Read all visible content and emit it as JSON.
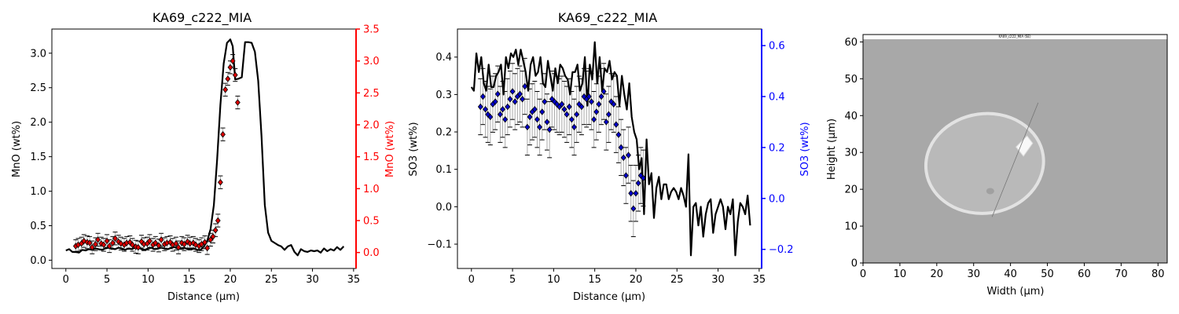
{
  "figure": {
    "background": "#ffffff"
  },
  "chart_data": [
    {
      "type": "line",
      "title": "KA69_c222_MIA",
      "xlabel": "Distance (μm)",
      "ylabel": "MnO (wt%)",
      "y2label": "MnO (wt%)",
      "y2color": "#ff0000",
      "xlim": [
        -1.7,
        35.3
      ],
      "ylim": [
        -0.12,
        3.35
      ],
      "y2lim": [
        -0.25,
        3.5
      ],
      "xticks": [
        0,
        5,
        10,
        15,
        20,
        25,
        30,
        35
      ],
      "yticks": [
        0.0,
        0.5,
        1.0,
        1.5,
        2.0,
        2.5,
        3.0
      ],
      "y2ticks": [
        0.0,
        0.5,
        1.0,
        1.5,
        2.0,
        2.5,
        3.0,
        3.5
      ],
      "series": [
        {
          "color": "#000000",
          "x": [
            0,
            0.4,
            0.8,
            1.2,
            1.6,
            2,
            2.4,
            2.8,
            3.2,
            3.6,
            4,
            4.4,
            4.8,
            5.2,
            5.6,
            6,
            6.4,
            6.8,
            7.2,
            7.6,
            8,
            8.4,
            8.8,
            9.2,
            9.6,
            10,
            10.4,
            10.8,
            11.2,
            11.6,
            12,
            12.4,
            12.8,
            13.2,
            13.6,
            14,
            14.4,
            14.8,
            15.2,
            15.6,
            16,
            16.4,
            16.8,
            17.2,
            17.6,
            18,
            18.4,
            18.8,
            19.2,
            19.6,
            20,
            20.3,
            20.6,
            21,
            21.4,
            21.8,
            22.2,
            22.6,
            23,
            23.4,
            23.8,
            24.2,
            24.6,
            25,
            25.4,
            25.8,
            26.2,
            26.6,
            27,
            27.4,
            27.8,
            28.2,
            28.6,
            29,
            29.4,
            29.8,
            30.2,
            30.6,
            31,
            31.4,
            31.8,
            32.2,
            32.6,
            33,
            33.4,
            33.8
          ],
          "y": [
            0.14,
            0.16,
            0.12,
            0.12,
            0.11,
            0.15,
            0.14,
            0.16,
            0.15,
            0.17,
            0.16,
            0.15,
            0.17,
            0.18,
            0.17,
            0.16,
            0.18,
            0.17,
            0.15,
            0.17,
            0.16,
            0.18,
            0.19,
            0.16,
            0.15,
            0.17,
            0.18,
            0.16,
            0.17,
            0.18,
            0.17,
            0.16,
            0.18,
            0.19,
            0.17,
            0.17,
            0.18,
            0.16,
            0.17,
            0.17,
            0.15,
            0.15,
            0.2,
            0.28,
            0.45,
            0.8,
            1.45,
            2.25,
            2.85,
            3.15,
            3.2,
            3.1,
            2.62,
            2.63,
            2.65,
            3.16,
            3.16,
            3.15,
            3.02,
            2.6,
            1.8,
            0.8,
            0.4,
            0.28,
            0.25,
            0.22,
            0.2,
            0.15,
            0.2,
            0.22,
            0.12,
            0.07,
            0.16,
            0.13,
            0.12,
            0.14,
            0.13,
            0.14,
            0.11,
            0.17,
            0.13,
            0.16,
            0.14,
            0.19,
            0.15,
            0.2
          ]
        }
      ],
      "points": {
        "marker": "diamond",
        "color": "#dd0000",
        "axis": "y2",
        "x": [
          1.2,
          1.5,
          1.9,
          2.2,
          2.6,
          2.9,
          3.2,
          3.6,
          3.9,
          4.3,
          4.6,
          5,
          5.3,
          5.7,
          6,
          6.4,
          6.7,
          7.1,
          7.4,
          7.8,
          8.1,
          8.5,
          8.8,
          9.2,
          9.5,
          9.9,
          10.2,
          10.6,
          10.9,
          11.3,
          11.6,
          12,
          12.3,
          12.7,
          13,
          13.4,
          13.7,
          14.1,
          14.4,
          14.8,
          15.1,
          15.5,
          15.8,
          16.2,
          16.5,
          16.9,
          17.2,
          17.6,
          17.9,
          18.2,
          18.5,
          18.8,
          19.1,
          19.4,
          19.7,
          20,
          20.3,
          20.6,
          20.9
        ],
        "y": [
          0.1,
          0.12,
          0.14,
          0.18,
          0.16,
          0.15,
          0.08,
          0.13,
          0.2,
          0.14,
          0.12,
          0.18,
          0.1,
          0.15,
          0.22,
          0.17,
          0.14,
          0.12,
          0.15,
          0.16,
          0.12,
          0.09,
          0.08,
          0.17,
          0.13,
          0.14,
          0.18,
          0.12,
          0.15,
          0.11,
          0.2,
          0.13,
          0.15,
          0.16,
          0.12,
          0.14,
          0.08,
          0.15,
          0.13,
          0.17,
          0.14,
          0.15,
          0.12,
          0.1,
          0.13,
          0.16,
          0.07,
          0.2,
          0.25,
          0.35,
          0.5,
          1.1,
          1.85,
          2.55,
          2.72,
          2.9,
          3.0,
          2.78,
          2.35
        ],
        "err": 0.1
      }
    },
    {
      "type": "line",
      "title": "KA69_c222_MIA",
      "xlabel": "Distance (μm)",
      "ylabel": "SO3 (wt%)",
      "y2label": "SO3 (wt%)",
      "y2color": "#0000ff",
      "xlim": [
        -1.7,
        35.3
      ],
      "ylim": [
        -0.165,
        0.475
      ],
      "y2lim": [
        -0.275,
        0.665
      ],
      "xticks": [
        0,
        5,
        10,
        15,
        20,
        25,
        30,
        35
      ],
      "yticks": [
        -0.1,
        0.0,
        0.1,
        0.2,
        0.3,
        0.4
      ],
      "y2ticks": [
        -0.2,
        0.0,
        0.2,
        0.4,
        0.6
      ],
      "series": [
        {
          "color": "#000000",
          "x": [
            0,
            0.3,
            0.6,
            0.9,
            1.2,
            1.5,
            1.8,
            2.1,
            2.4,
            2.7,
            3,
            3.3,
            3.6,
            3.9,
            4.2,
            4.5,
            4.8,
            5.1,
            5.4,
            5.7,
            6,
            6.3,
            6.6,
            6.9,
            7.2,
            7.5,
            7.8,
            8.1,
            8.4,
            8.7,
            9,
            9.3,
            9.6,
            9.9,
            10.2,
            10.5,
            10.8,
            11.1,
            11.4,
            11.7,
            12,
            12.3,
            12.6,
            12.9,
            13.2,
            13.5,
            13.8,
            14.1,
            14.4,
            14.7,
            15,
            15.3,
            15.6,
            15.9,
            16.2,
            16.5,
            16.8,
            17.1,
            17.4,
            17.7,
            18,
            18.3,
            18.6,
            18.9,
            19.2,
            19.5,
            19.8,
            20.1,
            20.4,
            20.7,
            21,
            21.3,
            21.6,
            21.9,
            22.2,
            22.5,
            22.8,
            23.1,
            23.4,
            23.7,
            24,
            24.3,
            24.6,
            24.9,
            25.2,
            25.5,
            25.8,
            26.1,
            26.4,
            26.7,
            27,
            27.3,
            27.6,
            27.9,
            28.2,
            28.5,
            28.8,
            29.1,
            29.4,
            29.7,
            30,
            30.3,
            30.6,
            30.9,
            31.2,
            31.5,
            31.8,
            32.1,
            32.4,
            32.7,
            33,
            33.3,
            33.6,
            33.9
          ],
          "y": [
            0.32,
            0.31,
            0.41,
            0.36,
            0.4,
            0.33,
            0.31,
            0.38,
            0.32,
            0.32,
            0.35,
            0.36,
            0.38,
            0.3,
            0.4,
            0.37,
            0.41,
            0.4,
            0.42,
            0.38,
            0.42,
            0.39,
            0.36,
            0.31,
            0.38,
            0.4,
            0.35,
            0.36,
            0.4,
            0.33,
            0.32,
            0.39,
            0.35,
            0.31,
            0.37,
            0.33,
            0.38,
            0.37,
            0.35,
            0.34,
            0.3,
            0.36,
            0.36,
            0.38,
            0.31,
            0.33,
            0.4,
            0.27,
            0.38,
            0.34,
            0.44,
            0.33,
            0.4,
            0.31,
            0.37,
            0.36,
            0.39,
            0.34,
            0.36,
            0.35,
            0.27,
            0.35,
            0.3,
            0.26,
            0.33,
            0.24,
            0.2,
            0.18,
            0.1,
            0.13,
            -0.02,
            0.18,
            0.06,
            0.09,
            -0.03,
            0.05,
            0.08,
            0.02,
            0.06,
            0.06,
            0.02,
            0.04,
            0.05,
            0.04,
            0.02,
            0.05,
            0.03,
            0.0,
            0.14,
            -0.13,
            0.0,
            0.01,
            -0.05,
            0.0,
            -0.08,
            -0.02,
            0.01,
            0.02,
            -0.07,
            -0.02,
            0.0,
            0.02,
            0.0,
            -0.06,
            0.0,
            -0.02,
            0.02,
            -0.13,
            -0.04,
            0.01,
            0.0,
            -0.02,
            0.03,
            -0.05
          ]
        }
      ],
      "points": {
        "marker": "diamond",
        "color": "#0000cc",
        "axis": "y2",
        "x": [
          1.1,
          1.4,
          1.7,
          2,
          2.3,
          2.6,
          2.9,
          3.2,
          3.5,
          3.8,
          4.1,
          4.4,
          4.7,
          5,
          5.3,
          5.6,
          5.9,
          6.2,
          6.5,
          6.8,
          7.1,
          7.4,
          7.7,
          8,
          8.3,
          8.6,
          8.9,
          9.2,
          9.5,
          9.8,
          10.1,
          10.4,
          10.7,
          11,
          11.3,
          11.6,
          11.9,
          12.2,
          12.5,
          12.8,
          13.1,
          13.4,
          13.7,
          14,
          14.3,
          14.6,
          14.9,
          15.2,
          15.5,
          15.8,
          16.1,
          16.4,
          16.7,
          17,
          17.3,
          17.6,
          17.9,
          18.2,
          18.5,
          18.8,
          19.1,
          19.4,
          19.7,
          20,
          20.3,
          20.6,
          20.9
        ],
        "y": [
          0.36,
          0.4,
          0.35,
          0.33,
          0.32,
          0.37,
          0.38,
          0.41,
          0.33,
          0.35,
          0.31,
          0.36,
          0.39,
          0.42,
          0.38,
          0.4,
          0.41,
          0.39,
          0.44,
          0.28,
          0.32,
          0.34,
          0.35,
          0.31,
          0.28,
          0.34,
          0.38,
          0.3,
          0.27,
          0.39,
          0.38,
          0.37,
          0.36,
          0.37,
          0.35,
          0.33,
          0.36,
          0.31,
          0.28,
          0.33,
          0.37,
          0.36,
          0.4,
          0.39,
          0.4,
          0.38,
          0.31,
          0.34,
          0.37,
          0.4,
          0.42,
          0.3,
          0.33,
          0.38,
          0.37,
          0.29,
          0.25,
          0.2,
          0.16,
          0.09,
          0.17,
          0.02,
          -0.04,
          0.02,
          0.06,
          0.09,
          0.08
        ],
        "err": 0.11
      }
    },
    {
      "type": "scatter",
      "title": "",
      "xlabel": "Width (μm)",
      "ylabel": "Height (μm)",
      "image_label": "KA69_c222_MIA (SE)",
      "xlim": [
        0,
        82.5
      ],
      "ylim": [
        0,
        62
      ],
      "xticks": [
        0,
        10,
        20,
        30,
        40,
        50,
        60,
        70,
        80
      ],
      "yticks": [
        0,
        10,
        20,
        30,
        40,
        50,
        60
      ],
      "grain": {
        "center": [
          33,
          27
        ],
        "radii": [
          16,
          13.5
        ]
      },
      "crystal": [
        [
          41.5,
          31.5
        ],
        [
          44.5,
          34.5
        ],
        [
          46,
          32.5
        ],
        [
          43.5,
          29
        ]
      ],
      "transect": {
        "from": [
          35,
          12.5
        ],
        "to": [
          47.5,
          43.5
        ]
      },
      "colors": {
        "image_bg": "#a8a8a8",
        "grain_fill": "#b9b9b9",
        "grain_rim": "#e2e2e2",
        "crystal": "#f8f8f8"
      }
    }
  ]
}
